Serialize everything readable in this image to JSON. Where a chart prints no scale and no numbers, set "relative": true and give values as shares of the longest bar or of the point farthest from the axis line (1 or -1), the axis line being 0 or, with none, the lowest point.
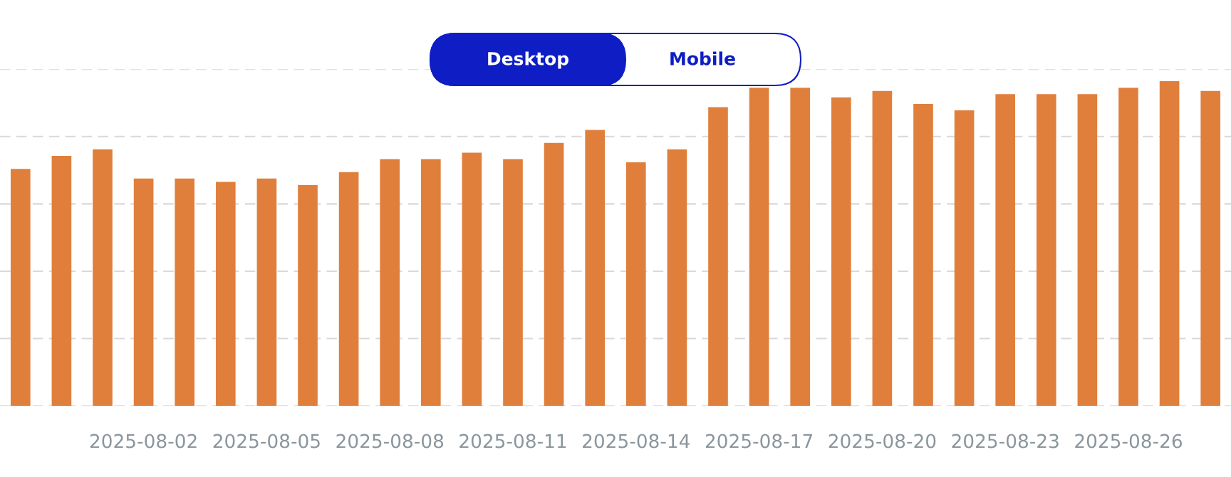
{
  "chart_data": {
    "type": "bar",
    "categories": [
      null,
      null,
      null,
      "2025-08-02",
      null,
      null,
      "2025-08-05",
      null,
      null,
      "2025-08-08",
      null,
      null,
      "2025-08-11",
      null,
      null,
      "2025-08-14",
      null,
      null,
      "2025-08-17",
      null,
      null,
      "2025-08-20",
      null,
      null,
      "2025-08-23",
      null,
      null,
      "2025-08-26",
      null,
      null
    ],
    "values": [
      0.73,
      0.77,
      0.79,
      0.7,
      0.7,
      0.69,
      0.7,
      0.68,
      0.72,
      0.76,
      0.76,
      0.78,
      0.76,
      0.81,
      0.85,
      0.75,
      0.79,
      0.92,
      0.98,
      0.98,
      0.95,
      0.97,
      0.93,
      0.91,
      0.96,
      0.96,
      0.96,
      0.98,
      1,
      0.97
    ],
    "color": "#e07f3c",
    "relative": true,
    "grid": "y",
    "annotations": [
      "Desktop",
      "Mobile"
    ]
  }
}
